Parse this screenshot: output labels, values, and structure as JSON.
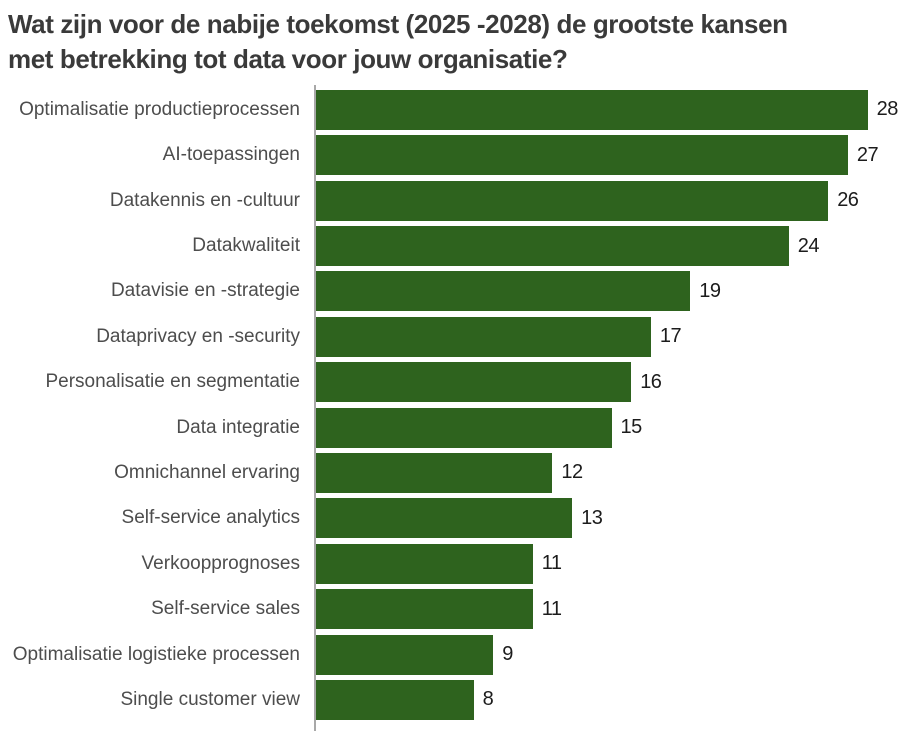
{
  "title": {
    "line1": "Wat zijn voor de nabije toekomst (2025 -2028) de grootste kansen",
    "line2": "met betrekking tot data voor jouw organisatie?"
  },
  "chart_data": {
    "type": "bar",
    "orientation": "horizontal",
    "title": "Wat zijn voor de nabije toekomst (2025 -2028) de grootste kansen met betrekking tot data voor jouw organisatie?",
    "categories": [
      "Optimalisatie productieprocessen",
      "AI-toepassingen",
      "Datakennis en -cultuur",
      "Datakwaliteit",
      "Datavisie en -strategie",
      "Dataprivacy en -security",
      "Personalisatie en segmentatie",
      "Data integratie",
      "Omnichannel ervaring",
      "Self-service analytics",
      "Verkoopprognoses",
      "Self-service sales",
      "Optimalisatie logistieke processen",
      "Single customer view"
    ],
    "values": [
      28,
      27,
      26,
      24,
      19,
      17,
      16,
      15,
      12,
      13,
      11,
      11,
      9,
      8
    ],
    "value_labels_shown": true,
    "xlim": [
      0,
      29
    ],
    "grid": false,
    "legend": false,
    "bar_color": "#2e631e",
    "axis_line_color": "#a8a8a8",
    "title_color": "#3a3a3a",
    "category_label_color": "#4d4d4d",
    "value_label_color": "#1c1c1c",
    "background_color": "#ffffff"
  }
}
